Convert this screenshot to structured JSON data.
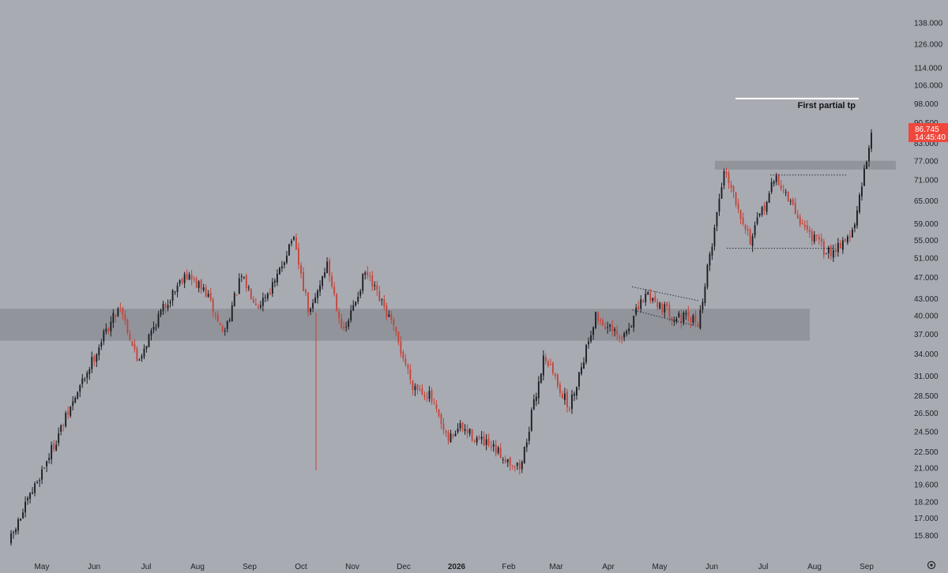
{
  "chart_data": {
    "type": "candlestick",
    "title": "",
    "xlabel": "",
    "ylabel": "",
    "y_scale": "log",
    "ylim": [
      14.9,
      146
    ],
    "y_ticks": [
      "15.800",
      "17.000",
      "18.200",
      "19.600",
      "21.000",
      "22.500",
      "24.500",
      "26.500",
      "28.500",
      "31.000",
      "34.000",
      "37.000",
      "40.000",
      "43.000",
      "47.000",
      "51.000",
      "55.000",
      "59.000",
      "65.000",
      "71.000",
      "77.000",
      "83.000",
      "90.500",
      "98.000",
      "106.000",
      "114.000",
      "126.000",
      "138.000"
    ],
    "x_ticks": [
      {
        "label": "May",
        "bold": false
      },
      {
        "label": "Jun",
        "bold": false
      },
      {
        "label": "Jul",
        "bold": false
      },
      {
        "label": "Aug",
        "bold": false
      },
      {
        "label": "Sep",
        "bold": false
      },
      {
        "label": "Oct",
        "bold": false
      },
      {
        "label": "Nov",
        "bold": false
      },
      {
        "label": "Dec",
        "bold": false
      },
      {
        "label": "2026",
        "bold": true
      },
      {
        "label": "Feb",
        "bold": false
      },
      {
        "label": "Mar",
        "bold": false
      },
      {
        "label": "Apr",
        "bold": false
      },
      {
        "label": "May",
        "bold": false
      },
      {
        "label": "Jun",
        "bold": false
      },
      {
        "label": "Jul",
        "bold": false
      },
      {
        "label": "Aug",
        "bold": false
      },
      {
        "label": "Sep",
        "bold": false
      }
    ],
    "path": [
      [
        "May",
        15.6
      ],
      [
        "Jun",
        36.5
      ],
      [
        "Jun",
        42.0
      ],
      [
        "Jun",
        33.0
      ],
      [
        "Jul",
        40.0
      ],
      [
        "Jul",
        48.0
      ],
      [
        "Aug",
        44.0
      ],
      [
        "Aug",
        37.0
      ],
      [
        "Aug",
        47.0
      ],
      [
        "Sep",
        42.0
      ],
      [
        "Sep",
        46.0
      ],
      [
        "Sep",
        56.0
      ],
      [
        "Oct",
        40.0
      ],
      [
        "Oct",
        50.0
      ],
      [
        "Oct",
        37.0
      ],
      [
        "Nov",
        48.0
      ],
      [
        "Nov",
        39.0
      ],
      [
        "Dec",
        30.0
      ],
      [
        "Dec",
        28.5
      ],
      [
        "Dec",
        23.5
      ],
      [
        "2026",
        25.0
      ],
      [
        "Feb",
        21.0
      ],
      [
        "Feb",
        34.0
      ],
      [
        "Mar",
        27.0
      ],
      [
        "Mar",
        40.0
      ],
      [
        "Apr",
        36.0
      ],
      [
        "Apr",
        44.0
      ],
      [
        "May",
        40.0
      ],
      [
        "May",
        39.0
      ],
      [
        "Jun",
        75.0
      ],
      [
        "Jun",
        55.0
      ],
      [
        "Jul",
        72.0
      ],
      [
        "Jul",
        59.0
      ],
      [
        "Aug",
        52.0
      ],
      [
        "Aug",
        57.0
      ],
      [
        "Sep",
        80.0
      ],
      [
        "Sep",
        86.745
      ]
    ],
    "zones": [
      {
        "y_low": 36.0,
        "y_high": 41.2
      },
      {
        "y_low": 74.2,
        "y_high": 77.0
      }
    ],
    "annotations": {
      "target_level": 100.2,
      "target_label": "First partial tp",
      "dotted_levels": [
        {
          "y": 72.5
        },
        {
          "y": 53.2
        }
      ]
    },
    "last_price": {
      "value": "86.745",
      "timer": "14:45:40",
      "color": "#f0473c"
    },
    "colors": {
      "background": "#a9abb3",
      "up": "#1b1d22",
      "down": "#c4453a",
      "zone": "#8b8d95",
      "target_line": "#ffffff"
    },
    "grid": false
  }
}
